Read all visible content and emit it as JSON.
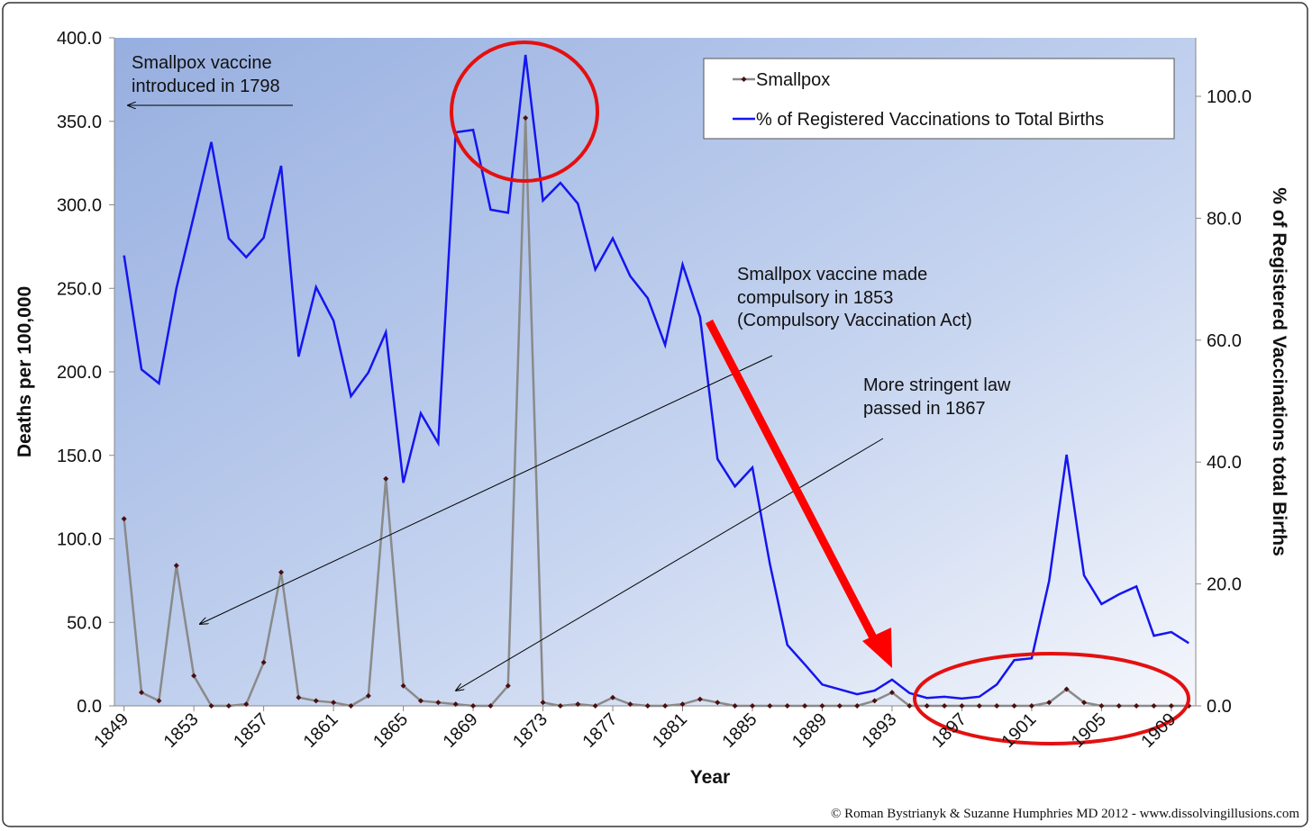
{
  "chart_data": {
    "type": "line",
    "x_label": "Year",
    "y_label": "Deaths per 100,000",
    "y2_label": "% of Registered Vaccinations total Births",
    "x": [
      1849,
      1850,
      1851,
      1852,
      1853,
      1854,
      1855,
      1856,
      1857,
      1858,
      1859,
      1860,
      1861,
      1862,
      1863,
      1864,
      1865,
      1866,
      1867,
      1868,
      1869,
      1870,
      1871,
      1872,
      1873,
      1874,
      1875,
      1876,
      1877,
      1878,
      1879,
      1880,
      1881,
      1882,
      1883,
      1884,
      1885,
      1886,
      1887,
      1888,
      1889,
      1890,
      1891,
      1892,
      1893,
      1894,
      1895,
      1896,
      1897,
      1898,
      1899,
      1900,
      1901,
      1902,
      1903,
      1904,
      1905,
      1906,
      1907,
      1908,
      1909,
      1910
    ],
    "xlim": [
      1848.45,
      1910.4
    ],
    "xticks": [
      1849,
      1853,
      1857,
      1861,
      1865,
      1869,
      1873,
      1877,
      1881,
      1885,
      1889,
      1893,
      1897,
      1901,
      1905,
      1909
    ],
    "ylim": [
      0,
      400
    ],
    "yticks": [
      {
        "value": 0,
        "label": "0.0"
      },
      {
        "value": 50,
        "label": "50.0"
      },
      {
        "value": 100,
        "label": "100.0"
      },
      {
        "value": 150,
        "label": "150.0"
      },
      {
        "value": 200,
        "label": "200.0"
      },
      {
        "value": 250,
        "label": "250.0"
      },
      {
        "value": 300,
        "label": "300.0"
      },
      {
        "value": 350,
        "label": "350.0"
      },
      {
        "value": 400,
        "label": "400.0"
      }
    ],
    "y2lim": [
      0,
      109.6
    ],
    "y2ticks": [
      {
        "value": 0,
        "label": "0.0"
      },
      {
        "value": 20,
        "label": "20.0"
      },
      {
        "value": 40,
        "label": "40.0"
      },
      {
        "value": 60,
        "label": "60.0"
      },
      {
        "value": 80,
        "label": "80.0"
      },
      {
        "value": 100,
        "label": "100.0"
      }
    ],
    "series": [
      {
        "name": "Smallpox",
        "color": "#8a8a8a",
        "marker_color": "#4a0e0e",
        "values": [
          112,
          8,
          3,
          84,
          18,
          0,
          0,
          1,
          26,
          80,
          5,
          3,
          2,
          0,
          6,
          136,
          12,
          3,
          2,
          1,
          0,
          0,
          12,
          352,
          2,
          0,
          1,
          0,
          5,
          1,
          0,
          0,
          1,
          4,
          2,
          0,
          0,
          0,
          0,
          0,
          0,
          0,
          0,
          3,
          8,
          0,
          0,
          0,
          0,
          0,
          0,
          0,
          0,
          2,
          10,
          2,
          0,
          0,
          0,
          0,
          0,
          0
        ]
      },
      {
        "name": "% of Registered Vaccinations to Total Births",
        "color": "#1515f0",
        "axis": "y2",
        "values": [
          73.9,
          55.2,
          52.9,
          68.5,
          80.4,
          92.5,
          76.7,
          73.6,
          76.8,
          88.6,
          57.3,
          68.7,
          63.2,
          50.8,
          54.7,
          61.3,
          36.6,
          48.0,
          43.1,
          94.1,
          94.5,
          81.4,
          80.9,
          106.8,
          82.9,
          85.8,
          82.4,
          71.6,
          76.7,
          70.5,
          66.9,
          59.2,
          72.4,
          63.8,
          40.5,
          36.0,
          39.1,
          23.3,
          10.0,
          6.8,
          3.5,
          2.7,
          1.9,
          2.5,
          4.3,
          2.1,
          1.3,
          1.5,
          1.2,
          1.5,
          3.5,
          7.5,
          7.8,
          20.5,
          41.2,
          21.4,
          16.7,
          18.3,
          19.6,
          11.5,
          12.1,
          10.3
        ]
      }
    ],
    "annotations": [
      {
        "lines": [
          "Smallpox vaccine",
          "introduced in 1798"
        ]
      },
      {
        "lines": [
          "Smallpox vaccine made",
          "compulsory in 1853",
          "(Compulsory Vaccination Act)"
        ]
      },
      {
        "lines": [
          "More stringent law",
          "passed in 1867"
        ]
      }
    ],
    "credit": "© Roman Bystrianyk & Suzanne Humphries MD 2012 - www.dissolvingillusions.com"
  }
}
